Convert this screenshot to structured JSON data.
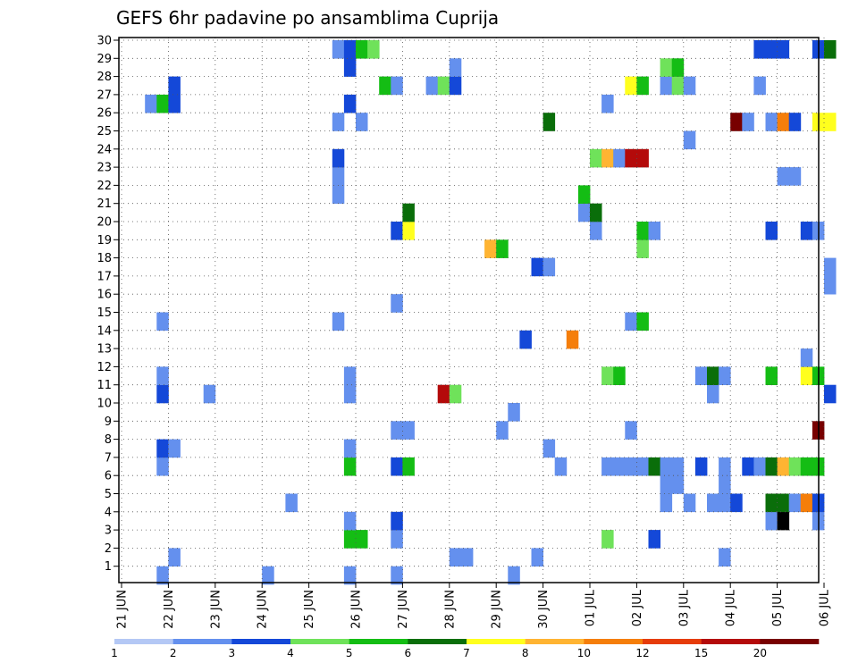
{
  "chart_data": {
    "type": "heatmap",
    "title": "GEFS 6hr padavine po ansamblima Cuprija",
    "y_categories": [
      "1",
      "2",
      "3",
      "4",
      "5",
      "6",
      "7",
      "8",
      "9",
      "10",
      "11",
      "12",
      "13",
      "14",
      "15",
      "16",
      "17",
      "18",
      "19",
      "20",
      "21",
      "22",
      "23",
      "24",
      "25",
      "26",
      "27",
      "28",
      "29",
      "30"
    ],
    "x_ticks": [
      "21 JUN",
      "22 JUN",
      "23 JUN",
      "24 JUN",
      "25 JUN",
      "26 JUN",
      "27 JUN",
      "28 JUN",
      "29 JUN",
      "30 JUN",
      "01 JUL",
      "02 JUL",
      "03 JUL",
      "04 JUL",
      "05 JUL",
      "06 JUL"
    ],
    "legend_labels": [
      "1",
      "2",
      "3",
      "4",
      "5",
      "6",
      "7",
      "8",
      "10",
      "12",
      "15",
      "20"
    ],
    "legend_colors": [
      "#b4c8f5",
      "#6490ee",
      "#1448d8",
      "#6fe25a",
      "#14bd14",
      "#0a6e0a",
      "#ffff1e",
      "#ffb432",
      "#f57e0a",
      "#e63c0a",
      "#b40a0a",
      "#780000"
    ],
    "cells": [
      [
        3,
        29,
        1
      ],
      [
        12,
        29,
        1
      ],
      [
        19,
        29,
        1
      ],
      [
        23,
        29,
        1
      ],
      [
        33,
        29,
        1
      ],
      [
        4,
        28,
        1
      ],
      [
        28,
        28,
        1
      ],
      [
        29,
        28,
        1
      ],
      [
        35,
        28,
        1
      ],
      [
        51,
        28,
        1
      ],
      [
        19,
        27,
        4
      ],
      [
        20,
        27,
        4
      ],
      [
        23,
        27,
        1
      ],
      [
        41,
        27,
        3
      ],
      [
        45,
        27,
        2
      ],
      [
        19,
        26,
        1
      ],
      [
        23,
        26,
        2
      ],
      [
        55,
        26,
        1
      ],
      [
        56,
        26,
        12
      ],
      [
        59,
        26,
        1
      ],
      [
        14,
        25,
        1
      ],
      [
        46,
        25,
        1
      ],
      [
        48,
        25,
        1
      ],
      [
        50,
        25,
        1
      ],
      [
        51,
        25,
        1
      ],
      [
        52,
        25,
        2
      ],
      [
        55,
        25,
        5
      ],
      [
        56,
        25,
        5
      ],
      [
        57,
        25,
        1
      ],
      [
        58,
        25,
        8
      ],
      [
        59,
        25,
        2
      ],
      [
        46,
        24,
        1
      ],
      [
        47,
        24,
        1
      ],
      [
        51,
        24,
        1
      ],
      [
        3,
        23,
        1
      ],
      [
        19,
        23,
        4
      ],
      [
        23,
        23,
        2
      ],
      [
        24,
        23,
        4
      ],
      [
        37,
        23,
        1
      ],
      [
        41,
        23,
        1
      ],
      [
        42,
        23,
        1
      ],
      [
        43,
        23,
        1
      ],
      [
        44,
        23,
        1
      ],
      [
        45,
        23,
        5
      ],
      [
        46,
        23,
        1
      ],
      [
        47,
        23,
        1
      ],
      [
        49,
        23,
        2
      ],
      [
        51,
        23,
        1
      ],
      [
        53,
        23,
        2
      ],
      [
        54,
        23,
        1
      ],
      [
        55,
        23,
        5
      ],
      [
        56,
        23,
        7
      ],
      [
        57,
        23,
        3
      ],
      [
        58,
        23,
        4
      ],
      [
        59,
        23,
        4
      ],
      [
        3,
        22,
        2
      ],
      [
        4,
        22,
        1
      ],
      [
        19,
        22,
        1
      ],
      [
        36,
        22,
        1
      ],
      [
        23,
        21,
        1
      ],
      [
        24,
        21,
        1
      ],
      [
        32,
        21,
        1
      ],
      [
        43,
        21,
        1
      ],
      [
        59,
        21,
        11
      ],
      [
        33,
        20,
        1
      ],
      [
        3,
        19,
        2
      ],
      [
        7,
        19,
        1
      ],
      [
        19,
        19,
        1
      ],
      [
        27,
        19,
        10
      ],
      [
        28,
        19,
        3
      ],
      [
        50,
        19,
        1
      ],
      [
        60,
        19,
        2
      ],
      [
        3,
        18,
        1
      ],
      [
        19,
        18,
        1
      ],
      [
        41,
        18,
        3
      ],
      [
        42,
        18,
        4
      ],
      [
        49,
        18,
        1
      ],
      [
        50,
        18,
        5
      ],
      [
        51,
        18,
        1
      ],
      [
        55,
        18,
        4
      ],
      [
        58,
        18,
        6
      ],
      [
        59,
        18,
        4
      ],
      [
        58,
        17,
        1
      ],
      [
        34,
        16,
        2
      ],
      [
        38,
        16,
        8
      ],
      [
        3,
        15,
        1
      ],
      [
        18,
        15,
        1
      ],
      [
        43,
        15,
        1
      ],
      [
        44,
        15,
        4
      ],
      [
        23,
        14,
        1
      ],
      [
        60,
        13,
        1
      ],
      [
        35,
        12,
        2
      ],
      [
        36,
        12,
        1
      ],
      [
        60,
        12,
        1
      ],
      [
        31,
        11,
        7
      ],
      [
        32,
        11,
        4
      ],
      [
        44,
        11,
        3
      ],
      [
        23,
        10,
        2
      ],
      [
        24,
        10,
        6
      ],
      [
        40,
        10,
        1
      ],
      [
        44,
        10,
        4
      ],
      [
        45,
        10,
        1
      ],
      [
        55,
        10,
        2
      ],
      [
        58,
        10,
        2
      ],
      [
        59,
        10,
        1
      ],
      [
        24,
        9,
        5
      ],
      [
        39,
        9,
        1
      ],
      [
        40,
        9,
        5
      ],
      [
        18,
        8,
        1
      ],
      [
        39,
        8,
        4
      ],
      [
        18,
        7,
        1
      ],
      [
        56,
        7,
        1
      ],
      [
        57,
        7,
        1
      ],
      [
        18,
        6,
        2
      ],
      [
        40,
        6,
        3
      ],
      [
        41,
        6,
        7
      ],
      [
        42,
        6,
        1
      ],
      [
        43,
        6,
        10
      ],
      [
        44,
        6,
        10
      ],
      [
        48,
        5,
        1
      ],
      [
        18,
        4,
        1
      ],
      [
        20,
        4,
        1
      ],
      [
        36,
        4,
        5
      ],
      [
        52,
        4,
        11
      ],
      [
        53,
        4,
        1
      ],
      [
        55,
        4,
        1
      ],
      [
        56,
        4,
        8
      ],
      [
        57,
        4,
        2
      ],
      [
        59,
        4,
        6
      ],
      [
        60,
        4,
        6
      ],
      [
        2,
        3,
        1
      ],
      [
        3,
        3,
        4
      ],
      [
        4,
        3,
        2
      ],
      [
        19,
        3,
        2
      ],
      [
        41,
        3,
        1
      ],
      [
        4,
        2,
        2
      ],
      [
        22,
        2,
        4
      ],
      [
        23,
        2,
        1
      ],
      [
        26,
        2,
        1
      ],
      [
        27,
        2,
        3
      ],
      [
        28,
        2,
        2
      ],
      [
        43,
        2,
        6
      ],
      [
        44,
        2,
        4
      ],
      [
        46,
        2,
        1
      ],
      [
        47,
        2,
        3
      ],
      [
        48,
        2,
        1
      ],
      [
        54,
        2,
        1
      ],
      [
        19,
        1,
        2
      ],
      [
        28,
        1,
        1
      ],
      [
        46,
        1,
        3
      ],
      [
        47,
        1,
        4
      ],
      [
        18,
        0,
        1
      ],
      [
        19,
        0,
        2
      ],
      [
        20,
        0,
        4
      ],
      [
        21,
        0,
        3
      ],
      [
        54,
        0,
        2
      ],
      [
        55,
        0,
        2
      ],
      [
        56,
        0,
        2
      ],
      [
        59,
        0,
        2
      ],
      [
        60,
        0,
        5
      ]
    ]
  }
}
